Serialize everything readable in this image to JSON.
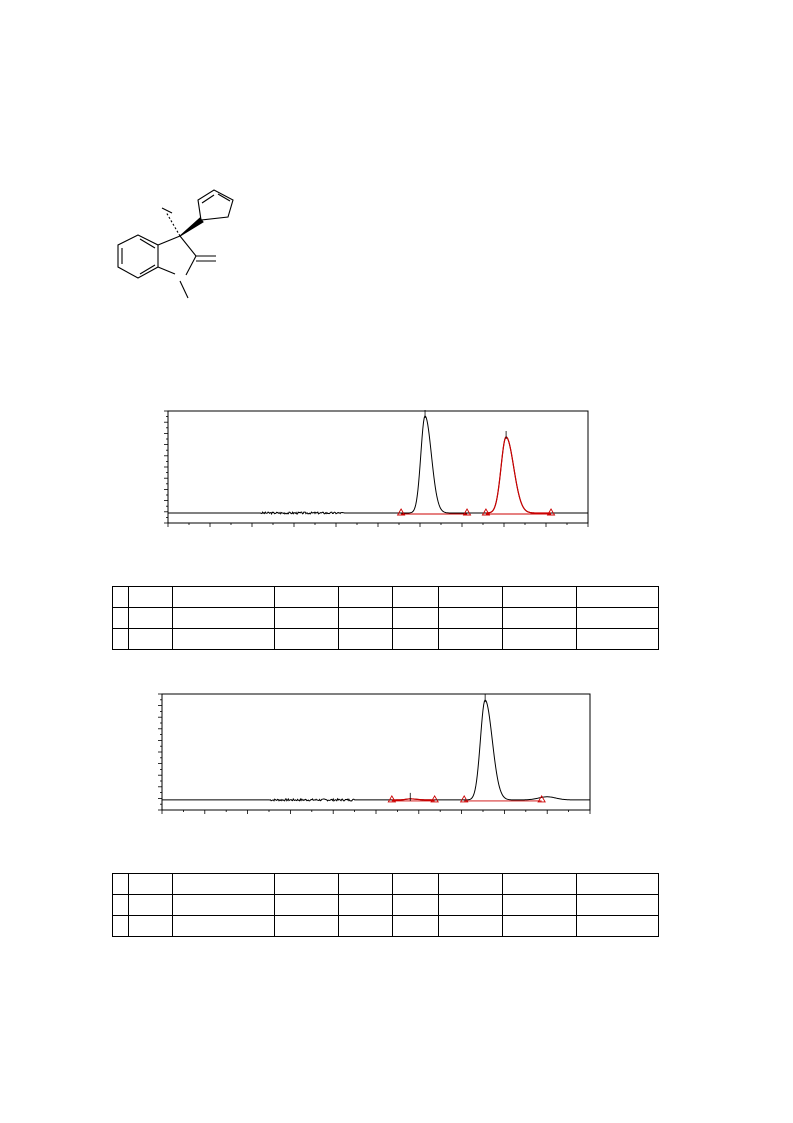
{
  "figure": {
    "molecule": {
      "description_visible_text": [],
      "stroke_color": "#000000"
    },
    "chromatograms": [
      {
        "id": "racemic",
        "trace_color": "#000000",
        "highlight_color": "#cc0000",
        "chart_data": {
          "type": "line",
          "x_range": [
            0,
            1
          ],
          "y_range": [
            0,
            1
          ],
          "x_tick_count": 20,
          "y_tick_count": 20,
          "peaks": [
            {
              "center": 0.612,
              "width": 0.01,
              "height": 0.97,
              "color": "#000000",
              "integration_start": 0.555,
              "integration_end": 0.712
            },
            {
              "center": 0.805,
              "width": 0.012,
              "height": 0.76,
              "color": "#cc0000",
              "integration_start": 0.757,
              "integration_end": 0.912
            }
          ],
          "baseline_noise_region": [
            0.22,
            0.42
          ],
          "grid": false,
          "legend": "none"
        },
        "table": {
          "rows": [
            [
              "",
              "",
              "",
              "",
              "",
              "",
              "",
              "",
              ""
            ],
            [
              "",
              "",
              "",
              "",
              "",
              "",
              "",
              "",
              ""
            ],
            [
              "",
              "",
              "",
              "",
              "",
              "",
              "",
              "",
              ""
            ]
          ]
        }
      },
      {
        "id": "enantioenriched",
        "trace_color": "#000000",
        "highlight_color": "#cc0000",
        "chart_data": {
          "type": "line",
          "x_range": [
            0,
            1
          ],
          "y_range": [
            0,
            1
          ],
          "x_tick_count": 20,
          "y_tick_count": 20,
          "peaks": [
            {
              "center": 0.755,
              "width": 0.011,
              "height": 0.96,
              "color": "#000000",
              "integration_start": 0.706,
              "integration_end": 0.887
            },
            {
              "center": 0.58,
              "width": 0.01,
              "height": 0.01,
              "color": "#cc0000",
              "integration_start": 0.537,
              "integration_end": 0.637
            }
          ],
          "baseline_noise_region": [
            0.25,
            0.45
          ],
          "grid": false,
          "legend": "none"
        },
        "table": {
          "rows": [
            [
              "",
              "",
              "",
              "",
              "",
              "",
              "",
              "",
              ""
            ],
            [
              "",
              "",
              "",
              "",
              "",
              "",
              "",
              "",
              ""
            ],
            [
              "",
              "",
              "",
              "",
              "",
              "",
              "",
              "",
              ""
            ]
          ]
        }
      }
    ]
  }
}
